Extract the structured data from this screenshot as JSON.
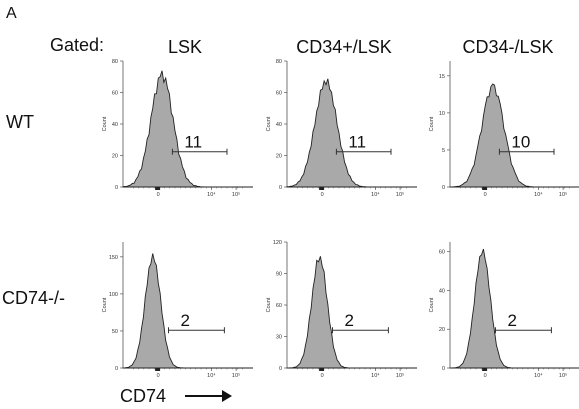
{
  "figure": {
    "panel_letter": "A",
    "gated_label": "Gated:",
    "x_axis_title": "CD74",
    "count_label": "Count",
    "x_tick_labels": [
      "0",
      "10⁴",
      "10⁵"
    ],
    "columns": [
      "LSK",
      "CD34+/LSK",
      "CD34-/LSK"
    ],
    "rows": [
      "WT",
      "CD74-/-"
    ],
    "colors": {
      "fill": "#a9a9a9",
      "outline": "#222222",
      "gate": "#333333"
    }
  },
  "chart_data": [
    {
      "type": "histogram",
      "genotype": "WT",
      "gate": "LSK",
      "x_scale": "biexponential",
      "ylabel": "Count",
      "xlabel": "CD74",
      "y_ticks": [
        0,
        20,
        40,
        60,
        80
      ],
      "ylim": [
        0,
        80
      ],
      "peak_count": 71,
      "gate_percent": "11"
    },
    {
      "type": "histogram",
      "genotype": "WT",
      "gate": "CD34+/LSK",
      "x_scale": "biexponential",
      "ylabel": "Count",
      "xlabel": "CD74",
      "y_ticks": [
        0,
        20,
        40,
        60,
        80
      ],
      "ylim": [
        0,
        80
      ],
      "peak_count": 67,
      "gate_percent": "11"
    },
    {
      "type": "histogram",
      "genotype": "WT",
      "gate": "CD34-/LSK",
      "x_scale": "biexponential",
      "ylabel": "Count",
      "xlabel": "CD74",
      "y_ticks": [
        0,
        5,
        10,
        15
      ],
      "ylim": [
        0,
        17
      ],
      "peak_count": 13.5,
      "gate_percent": "10"
    },
    {
      "type": "histogram",
      "genotype": "CD74-/-",
      "gate": "LSK",
      "x_scale": "biexponential",
      "ylabel": "Count",
      "xlabel": "CD74",
      "y_ticks": [
        0,
        50,
        100,
        150
      ],
      "ylim": [
        0,
        170
      ],
      "peak_count": 150,
      "gate_percent": "2"
    },
    {
      "type": "histogram",
      "genotype": "CD74-/-",
      "gate": "CD34+/LSK",
      "x_scale": "biexponential",
      "ylabel": "Count",
      "xlabel": "CD74",
      "y_ticks": [
        0,
        30,
        60,
        90,
        120
      ],
      "ylim": [
        0,
        120
      ],
      "peak_count": 105,
      "gate_percent": "2"
    },
    {
      "type": "histogram",
      "genotype": "CD74-/-",
      "gate": "CD34-/LSK",
      "x_scale": "biexponential",
      "ylabel": "Count",
      "xlabel": "CD74",
      "y_ticks": [
        0,
        20,
        40,
        60
      ],
      "ylim": [
        0,
        65
      ],
      "peak_count": 60,
      "gate_percent": "2"
    }
  ]
}
